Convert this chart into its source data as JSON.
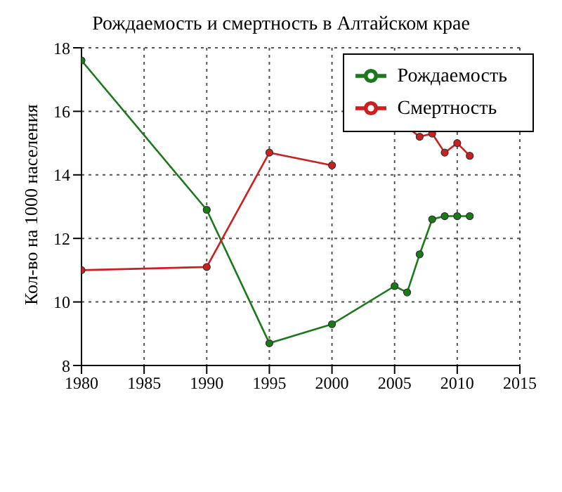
{
  "chart_data": {
    "type": "line",
    "title": "Рождаемость и смертность в Алтайском крае",
    "ylabel": "Кол-во на 1000 населения",
    "x": [
      1980,
      1990,
      1995,
      2000,
      2005,
      2006,
      2007,
      2008,
      2009,
      2010,
      2011
    ],
    "series": [
      {
        "name": "Рождаемость",
        "color": "#1a7a1a",
        "values": [
          17.6,
          12.9,
          8.7,
          9.3,
          10.5,
          10.3,
          11.5,
          12.6,
          12.7,
          12.7,
          12.7
        ]
      },
      {
        "name": "Смертность",
        "color": "#cc1f1f",
        "values": [
          11.0,
          11.1,
          14.7,
          14.3,
          null,
          15.5,
          15.2,
          15.3,
          14.7,
          15.0,
          14.6
        ]
      }
    ],
    "xlim": [
      1980,
      2015
    ],
    "xticks": [
      1980,
      1985,
      1990,
      1995,
      2000,
      2005,
      2010,
      2015
    ],
    "ylim": [
      8,
      18
    ],
    "yticks": [
      8,
      10,
      12,
      14,
      16,
      18
    ],
    "grid": true,
    "legend": "top right",
    "marker": "circle",
    "line_style": "solid"
  }
}
